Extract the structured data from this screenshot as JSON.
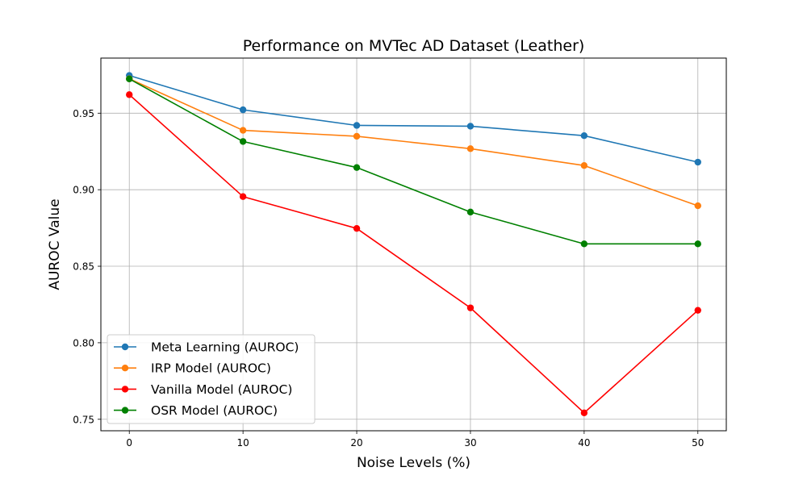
{
  "chart_data": {
    "type": "line",
    "title": "Performance on MVTec AD Dataset (Leather)",
    "xlabel": "Noise Levels (%)",
    "ylabel": "AUROC Value",
    "x": [
      0,
      10,
      20,
      30,
      40,
      50
    ],
    "xlim": [
      -2.5,
      52.5
    ],
    "ylim": [
      0.7425,
      0.986
    ],
    "xticks": [
      "0",
      "10",
      "20",
      "30",
      "40",
      "50"
    ],
    "yticks": [
      "0.75",
      "0.80",
      "0.85",
      "0.90",
      "0.95"
    ],
    "grid": true,
    "legend_position": "lower-left",
    "series": [
      {
        "name": "Meta Learning (AUROC)",
        "color": "#1f77b4",
        "marker": "circle",
        "values": [
          0.9746,
          0.9522,
          0.942,
          0.9415,
          0.9353,
          0.918
        ]
      },
      {
        "name": "IRP Model (AUROC)",
        "color": "#ff7f0e",
        "marker": "circle",
        "values": [
          0.9725,
          0.9388,
          0.9349,
          0.9268,
          0.9158,
          0.8895
        ]
      },
      {
        "name": "Vanilla Model (AUROC)",
        "color": "#ff0000",
        "marker": "circle",
        "values": [
          0.9621,
          0.8955,
          0.8747,
          0.8228,
          0.7542,
          0.8212
        ]
      },
      {
        "name": "OSR Model (AUROC)",
        "color": "#008000",
        "marker": "circle",
        "values": [
          0.9724,
          0.9315,
          0.9145,
          0.8854,
          0.8646,
          0.8646
        ]
      }
    ]
  }
}
